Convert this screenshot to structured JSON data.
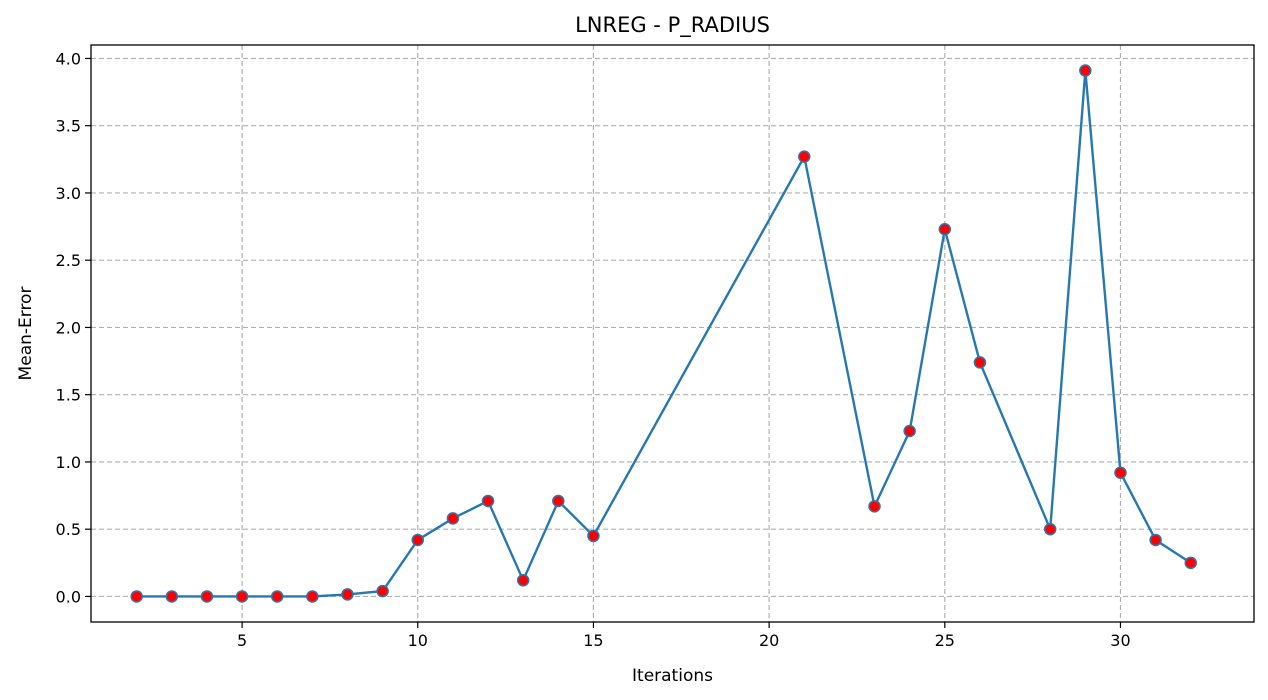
{
  "chart_data": {
    "type": "line",
    "title": "LNREG - P_RADIUS",
    "xlabel": "Iterations",
    "ylabel": "Mean-Error",
    "xlim": [
      0.7,
      33.8
    ],
    "ylim": [
      -0.19,
      4.1
    ],
    "xticks": [
      5,
      10,
      15,
      20,
      25,
      30
    ],
    "yticks": [
      0.0,
      0.5,
      1.0,
      1.5,
      2.0,
      2.5,
      3.0,
      3.5,
      4.0
    ],
    "xtick_labels": [
      "5",
      "10",
      "15",
      "20",
      "25",
      "30"
    ],
    "ytick_labels": [
      "0.0",
      "0.5",
      "1.0",
      "1.5",
      "2.0",
      "2.5",
      "3.0",
      "3.5",
      "4.0"
    ],
    "grid": true,
    "series": [
      {
        "x": [
          2,
          3,
          4,
          5,
          6,
          7,
          8,
          9,
          10,
          11,
          12,
          13,
          14,
          15,
          21,
          23,
          24,
          25,
          26,
          28,
          29,
          30,
          31,
          32
        ],
        "y": [
          0.0,
          0.0,
          0.0,
          0.0,
          0.0,
          0.0,
          0.015,
          0.04,
          0.42,
          0.58,
          0.71,
          0.12,
          0.71,
          0.45,
          3.27,
          0.67,
          1.23,
          2.73,
          1.74,
          0.5,
          3.91,
          0.92,
          0.42,
          0.25
        ],
        "line_color": "#2878b0",
        "marker_face": "#ff0000",
        "marker_edge": "#2878b0"
      }
    ]
  }
}
